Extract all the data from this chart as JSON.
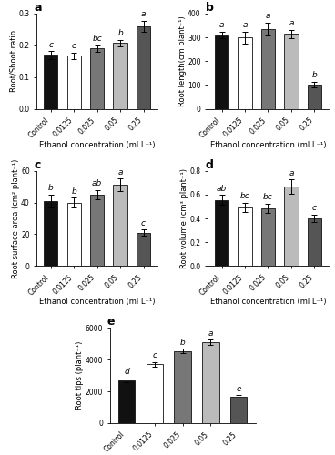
{
  "categories": [
    "Control",
    "0.0125",
    "0.025",
    "0.05",
    "0.25"
  ],
  "bar_colors": [
    "#111111",
    "#ffffff",
    "#777777",
    "#bbbbbb",
    "#555555"
  ],
  "bar_edgecolor": "#111111",
  "panel_a": {
    "title": "a",
    "ylabel": "Root/Shoot ratio",
    "xlabel": "Ethanol concentration (ml L⁻¹)",
    "ylim": [
      0,
      0.3
    ],
    "yticks": [
      0.0,
      0.1,
      0.2,
      0.3
    ],
    "values": [
      0.17,
      0.168,
      0.19,
      0.208,
      0.26
    ],
    "errors": [
      0.012,
      0.01,
      0.01,
      0.01,
      0.018
    ],
    "letters": [
      "c",
      "c",
      "bc",
      "b",
      "a"
    ]
  },
  "panel_b": {
    "title": "b",
    "ylabel": "Root length(cm plant⁻¹)",
    "xlabel": "Ethanol concentration (ml L⁻¹)",
    "ylim": [
      0,
      400
    ],
    "yticks": [
      0,
      100,
      200,
      300,
      400
    ],
    "values": [
      310,
      300,
      335,
      315,
      103
    ],
    "errors": [
      15,
      25,
      28,
      18,
      12
    ],
    "letters": [
      "a",
      "a",
      "a",
      "a",
      "b"
    ]
  },
  "panel_c": {
    "title": "c",
    "ylabel": "Root surface area (cm² plant⁻¹)",
    "xlabel": "Ethanol concentration (ml L⁻¹)",
    "ylim": [
      0,
      60
    ],
    "yticks": [
      0,
      20,
      40,
      60
    ],
    "values": [
      41,
      40,
      45,
      51,
      21
    ],
    "errors": [
      4,
      3,
      3,
      4,
      2
    ],
    "letters": [
      "b",
      "b",
      "ab",
      "a",
      "c"
    ]
  },
  "panel_d": {
    "title": "d",
    "ylabel": "Root volume (cm³ plant⁻¹)",
    "xlabel": "Ethanol concentration (ml L⁻¹)",
    "ylim": [
      0,
      0.8
    ],
    "yticks": [
      0.0,
      0.2,
      0.4,
      0.6,
      0.8
    ],
    "values": [
      0.555,
      0.49,
      0.485,
      0.665,
      0.4
    ],
    "errors": [
      0.04,
      0.04,
      0.04,
      0.06,
      0.03
    ],
    "letters": [
      "ab",
      "bc",
      "bc",
      "a",
      "c"
    ]
  },
  "panel_e": {
    "title": "e",
    "ylabel": "Root tips (plant⁻¹)",
    "xlabel": "Ethanol concentration (ml L⁻¹)",
    "ylim": [
      0,
      6000
    ],
    "yticks": [
      0,
      2000,
      4000,
      6000
    ],
    "values": [
      2700,
      3700,
      4550,
      5100,
      1650
    ],
    "errors": [
      120,
      150,
      130,
      160,
      120
    ],
    "letters": [
      "d",
      "c",
      "b",
      "a",
      "e"
    ]
  },
  "letter_fontsize": 6.5,
  "axis_label_fontsize": 6,
  "tick_fontsize": 5.5,
  "title_fontsize": 9,
  "bar_width": 0.6
}
